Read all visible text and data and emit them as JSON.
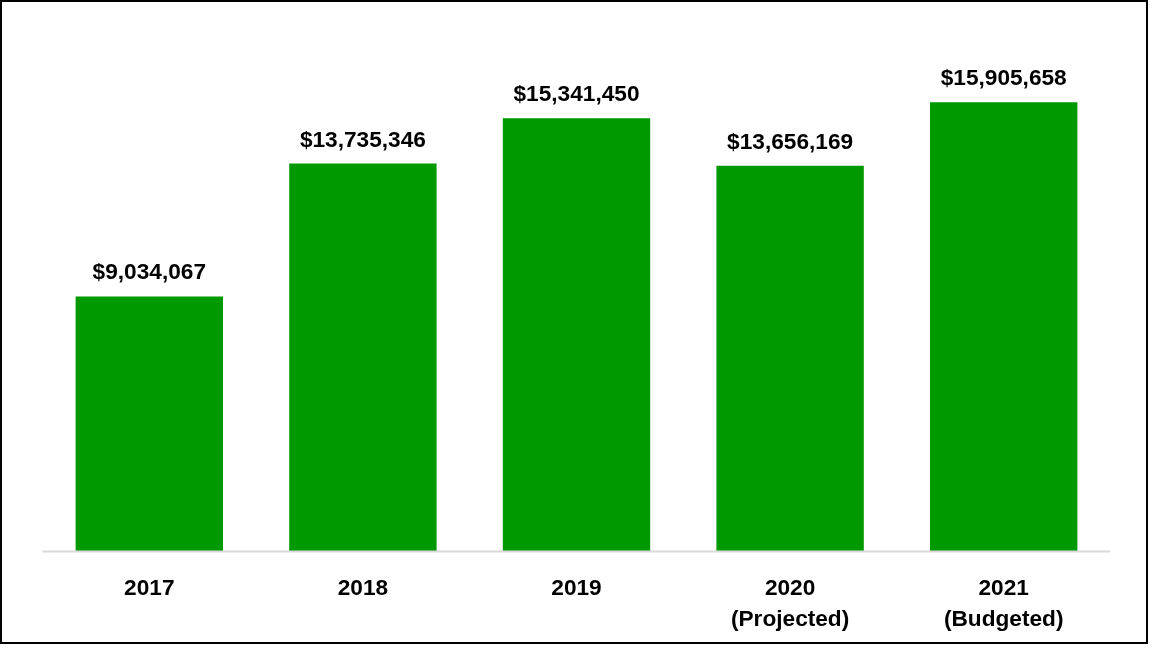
{
  "chart_data": {
    "type": "bar",
    "categories": [
      "2017",
      "2018",
      "2019",
      "2020\n(Projected)",
      "2021\n(Budgeted)"
    ],
    "values": [
      9034067,
      13735346,
      15341450,
      13656169,
      15905658
    ],
    "value_labels": [
      "$9,034,067",
      "$13,735,346",
      "$15,341,450",
      "$13,656,169",
      "$15,905,658"
    ],
    "color": "#009900",
    "grid": false,
    "tick_labels": "x"
  }
}
